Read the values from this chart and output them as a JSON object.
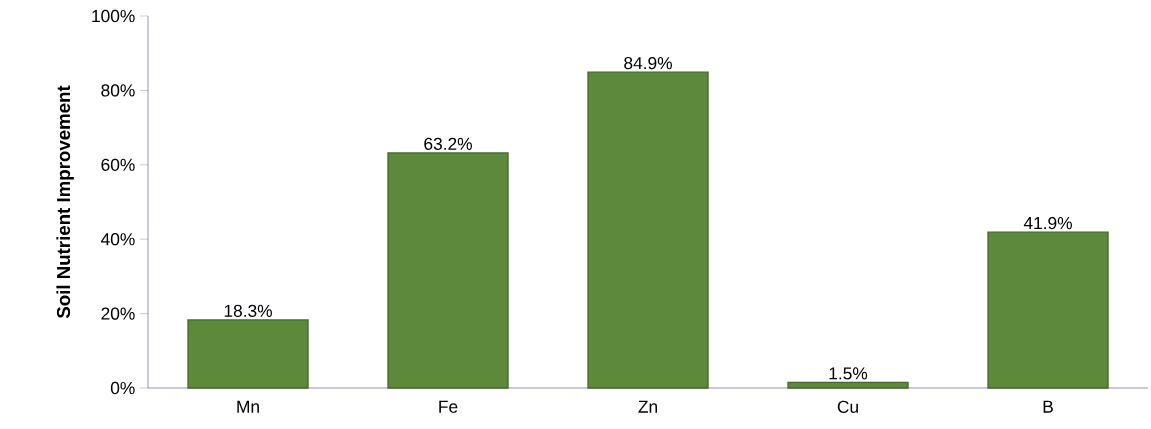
{
  "chart_data": {
    "type": "bar",
    "ylabel": "Soil Nutrient Improvement",
    "categories": [
      "Mn",
      "Fe",
      "Zn",
      "Cu",
      "B"
    ],
    "values": [
      18.3,
      63.2,
      84.9,
      1.5,
      41.9
    ],
    "value_labels": [
      "18.3%",
      "63.2%",
      "84.9%",
      "1.5%",
      "41.9%"
    ],
    "color": "#5d8a3a",
    "ylim": [
      0,
      100
    ],
    "yticks": [
      {
        "value": 0,
        "label": "0%"
      },
      {
        "value": 20,
        "label": "20%"
      },
      {
        "value": 40,
        "label": "40%"
      },
      {
        "value": 60,
        "label": "60%"
      },
      {
        "value": 80,
        "label": "80%"
      },
      {
        "value": 100,
        "label": "100%"
      }
    ]
  }
}
